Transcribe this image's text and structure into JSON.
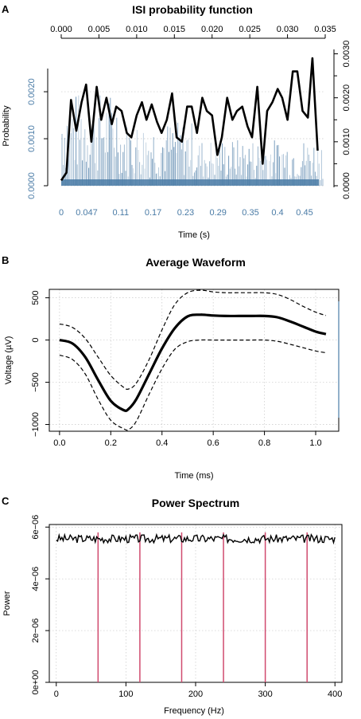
{
  "chart_data": [
    {
      "panel": "A",
      "type": "bar",
      "title": "ISI probability function",
      "xlabel": "Time (s)",
      "ylabel": "Probability",
      "x_top_ticks": [
        "0.000",
        "0.005",
        "0.010",
        "0.015",
        "0.020",
        "0.025",
        "0.030",
        "0.035"
      ],
      "x_bottom_ticks": [
        "0",
        "0.047",
        "0.11",
        "0.17",
        "0.23",
        "0.29",
        "0.35",
        "0.4",
        "0.45"
      ],
      "y_left_ticks": [
        "0.0000",
        "0.0010",
        "0.0020"
      ],
      "y_right_ticks": [
        "0.0000",
        "0.0010",
        "0.0020",
        "0.0030"
      ],
      "ylim_left": [
        0,
        0.0029
      ],
      "ylim_right": [
        0,
        0.0031
      ],
      "xlim_top": [
        0,
        0.035
      ],
      "xlim_bottom": [
        0,
        0.5
      ],
      "bar_color": "#4a7ba6",
      "line_series": {
        "x": [
          0.0,
          0.0007,
          0.0013,
          0.002,
          0.0027,
          0.0033,
          0.004,
          0.0047,
          0.0053,
          0.006,
          0.0067,
          0.0073,
          0.008,
          0.0087,
          0.0093,
          0.01,
          0.0107,
          0.0113,
          0.012,
          0.0127,
          0.0133,
          0.014,
          0.0147,
          0.0153,
          0.016,
          0.0167,
          0.0173,
          0.018,
          0.0187,
          0.0193,
          0.02,
          0.0207,
          0.0213,
          0.022,
          0.0227,
          0.0233,
          0.024,
          0.0247,
          0.0253,
          0.026,
          0.0267,
          0.0273,
          0.028,
          0.0287,
          0.0293,
          0.03,
          0.0307,
          0.0313,
          0.032,
          0.0327,
          0.0333,
          0.034
        ],
        "y": [
          0.00012,
          0.0003,
          0.00195,
          0.00125,
          0.0019,
          0.0023,
          0.001,
          0.00225,
          0.0015,
          0.002,
          0.0014,
          0.0018,
          0.0017,
          0.0012,
          0.0011,
          0.0016,
          0.0019,
          0.0015,
          0.00185,
          0.00145,
          0.0012,
          0.0015,
          0.0021,
          0.0011,
          0.001,
          0.0018,
          0.0018,
          0.0012,
          0.002,
          0.0017,
          0.0016,
          0.0007,
          0.0011,
          0.002,
          0.0015,
          0.0017,
          0.0018,
          0.00135,
          0.0011,
          0.00225,
          0.0005,
          0.0017,
          0.0019,
          0.0022,
          0.002,
          0.0015,
          0.0026,
          0.0026,
          0.0017,
          0.00155,
          0.0029,
          0.0008
        ]
      }
    },
    {
      "panel": "B",
      "type": "line",
      "title": "Average Waveform",
      "xlabel": "Time (ms)",
      "ylabel": "Voltage (µV)",
      "x_ticks": [
        "0.0",
        "0.2",
        "0.4",
        "0.6",
        "0.8",
        "1.0"
      ],
      "y_ticks": [
        "−1000",
        "−500",
        "0",
        "500"
      ],
      "xlim": [
        -0.04,
        1.09
      ],
      "ylim": [
        -1080,
        600
      ],
      "x": [
        0.0,
        0.05,
        0.1,
        0.15,
        0.2,
        0.25,
        0.27,
        0.3,
        0.35,
        0.4,
        0.45,
        0.5,
        0.55,
        0.6,
        0.65,
        0.7,
        0.75,
        0.8,
        0.85,
        0.9,
        0.95,
        1.0,
        1.04
      ],
      "mean": [
        0,
        -40,
        -200,
        -470,
        -720,
        -830,
        -815,
        -700,
        -400,
        -100,
        140,
        280,
        300,
        290,
        285,
        285,
        285,
        285,
        270,
        220,
        160,
        100,
        70
      ],
      "upper": [
        190,
        150,
        20,
        -200,
        -420,
        -560,
        -580,
        -510,
        -230,
        120,
        420,
        560,
        590,
        570,
        560,
        560,
        560,
        560,
        540,
        480,
        400,
        330,
        290
      ],
      "lower": [
        -180,
        -230,
        -400,
        -700,
        -950,
        -1050,
        -1060,
        -960,
        -640,
        -340,
        -110,
        -20,
        0,
        0,
        0,
        0,
        0,
        0,
        -15,
        -50,
        -90,
        -130,
        -150
      ]
    },
    {
      "panel": "C",
      "type": "line",
      "title": "Power Spectrum",
      "xlabel": "Frequency (Hz)",
      "ylabel": "Power",
      "x_ticks": [
        "0",
        "100",
        "200",
        "300",
        "400"
      ],
      "y_ticks": [
        "0e+00",
        "2e−06",
        "4e−06",
        "6e−06"
      ],
      "xlim": [
        -10,
        410
      ],
      "ylim": [
        0,
        6.1e-06
      ],
      "mean_power": 5.55e-06,
      "harmonic_lines_hz": [
        60,
        120,
        180,
        240,
        300,
        360
      ],
      "harmonic_color": "#d04a6e"
    }
  ]
}
